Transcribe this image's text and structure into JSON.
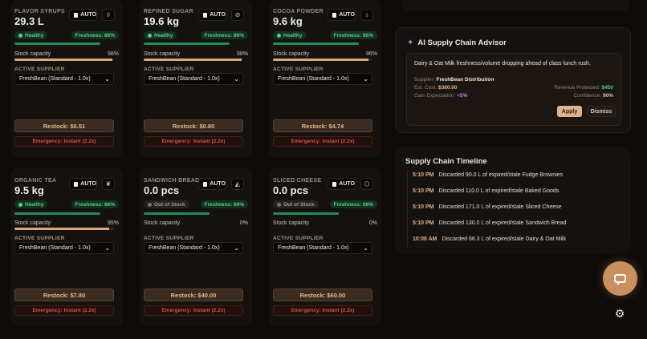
{
  "cards": [
    {
      "name": "FLAVOR SYRUPS",
      "value": "29.3 L",
      "auto": "AUTO",
      "icon": "droplet-icon",
      "glyph": "◊",
      "status": "Healthy",
      "freshness": "Freshness: 86%",
      "fresh_level": 0.86,
      "cap_label": "Stock capacity",
      "cap_pct": "98%",
      "cap_level": 0.98,
      "sup_label": "ACTIVE SUPPLIER",
      "supplier": "FreshBean (Standard - 1.0x)",
      "restock": "Restock: $6.51",
      "emergency": "Emergency: Instant (2.2x)"
    },
    {
      "name": "REFINED SUGAR",
      "value": "19.6 kg",
      "auto": "AUTO",
      "icon": "pill-icon",
      "glyph": "⊘",
      "status": "Healthy",
      "freshness": "Freshness: 86%",
      "fresh_level": 0.86,
      "cap_label": "Stock capacity",
      "cap_pct": "98%",
      "cap_level": 0.98,
      "sup_label": "ACTIVE SUPPLIER",
      "supplier": "FreshBean (Standard - 1.0x)",
      "restock": "Restock: $0.80",
      "emergency": "Emergency: Instant (2.2x)"
    },
    {
      "name": "COCOA POWDER",
      "value": "9.6 kg",
      "auto": "AUTO",
      "icon": "bean-icon",
      "glyph": "♁",
      "status": "Healthy",
      "freshness": "Freshness: 86%",
      "fresh_level": 0.86,
      "cap_label": "Stock capacity",
      "cap_pct": "96%",
      "cap_level": 0.96,
      "sup_label": "ACTIVE SUPPLIER",
      "supplier": "FreshBean (Standard - 1.0x)",
      "restock": "Restock: $4.74",
      "emergency": "Emergency: Instant (2.2x)"
    },
    {
      "name": "ORGANIC TEA",
      "value": "9.5 kg",
      "auto": "AUTO",
      "icon": "leaf-icon",
      "glyph": "❦",
      "status": "Healthy",
      "freshness": "Freshness: 86%",
      "fresh_level": 0.86,
      "cap_label": "Stock capacity",
      "cap_pct": "95%",
      "cap_level": 0.95,
      "sup_label": "ACTIVE SUPPLIER",
      "supplier": "FreshBean (Standard - 1.0x)",
      "restock": "Restock: $7.80",
      "emergency": "Emergency: Instant (2.2x)"
    },
    {
      "name": "SANDWICH BREAD",
      "value": "0.0 pcs",
      "auto": "AUTO",
      "icon": "pizza-slice-icon",
      "glyph": "◭",
      "status": "Out of Stock",
      "freshness": "Freshness: 66%",
      "fresh_level": 0.66,
      "cap_label": "Stock capacity",
      "cap_pct": "0%",
      "cap_level": 0,
      "sup_label": "ACTIVE SUPPLIER",
      "supplier": "FreshBean (Standard - 1.0x)",
      "restock": "Restock: $40.00",
      "emergency": "Emergency: Instant (2.2x)"
    },
    {
      "name": "SLICED CHEESE",
      "value": "0.0 pcs",
      "auto": "AUTO",
      "icon": "box-icon",
      "glyph": "⬡",
      "status": "Out of Stock",
      "freshness": "Freshness: 66%",
      "fresh_level": 0.66,
      "cap_label": "Stock capacity",
      "cap_pct": "0%",
      "cap_level": 0,
      "sup_label": "ACTIVE SUPPLIER",
      "supplier": "FreshBean (Standard - 1.0x)",
      "restock": "Restock: $60.00",
      "emergency": "Emergency: Instant (2.2x)"
    }
  ],
  "advisor": {
    "title": "AI Supply Chain Advisor",
    "message": "Dairy & Oat Milk freshness/volume dropping ahead of class lunch rush.",
    "supplier_label": "Supplier:",
    "supplier_value": "FreshBean Distribution",
    "cost_label": "Est. Cost:",
    "cost_value": "$380.00",
    "revenue_label": "Revenue Protected:",
    "revenue_value": "$450",
    "gain_label": "Gain Expectation:",
    "gain_value": "+5%",
    "confidence_label": "Confidence:",
    "confidence_value": "90%",
    "apply": "Apply",
    "dismiss": "Dismiss"
  },
  "timeline": {
    "title": "Supply Chain Timeline",
    "items": [
      {
        "time": "5:10 PM",
        "text": "Discarded 90.0 L of expired/stale Fudge Brownies"
      },
      {
        "time": "5:10 PM",
        "text": "Discarded 110.0 L of expired/stale Baked Goods"
      },
      {
        "time": "5:10 PM",
        "text": "Discarded 171.0 L of expired/stale Sliced Cheese"
      },
      {
        "time": "5:10 PM",
        "text": "Discarded 130.0 L of expired/stale Sandwich Bread"
      },
      {
        "time": "10:08 AM",
        "text": "Discarded 68.3 L of expired/stale Dairy & Oat Milk"
      }
    ]
  },
  "colors": {
    "accent": "#e0b38a",
    "healthy": "#4fd18a",
    "danger": "#e2503f",
    "purple": "#b58cf0"
  }
}
